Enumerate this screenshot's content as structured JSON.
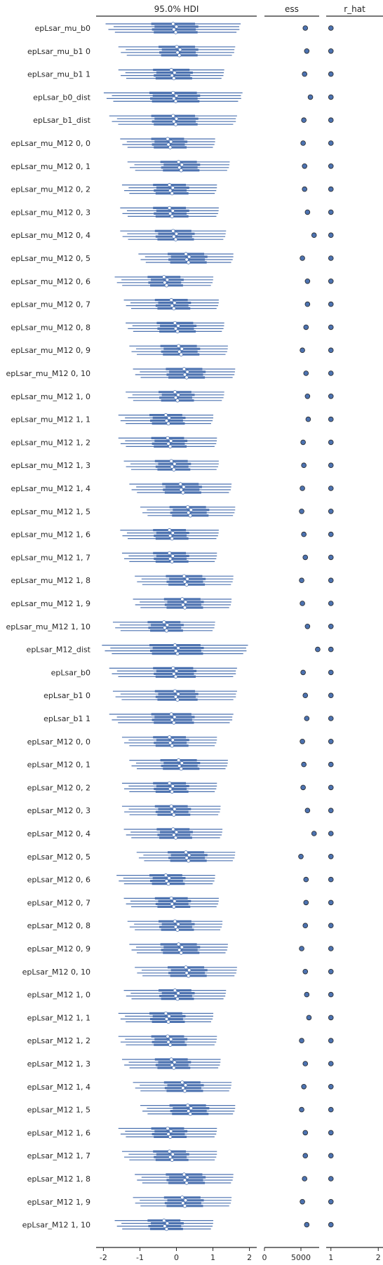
{
  "chart_data": {
    "type": "forest",
    "panels": [
      {
        "title": "95.0% HDI",
        "xlim": [
          -2.2,
          2.2
        ],
        "ticks": [
          -2,
          -1,
          0,
          1,
          2
        ]
      },
      {
        "title": "ess",
        "xlim": [
          0,
          7500
        ],
        "ticks": [
          0,
          5000
        ]
      },
      {
        "title": "r_hat",
        "xlim": [
          0.9,
          2.1
        ],
        "ticks": [
          1,
          2
        ]
      }
    ],
    "colors": {
      "interval": "#4c72b0",
      "marker_edge": "#262626",
      "marker_fill_hdi": "#ffffff",
      "axis": "#262626"
    },
    "rows": [
      {
        "label": "epLsar_mu_b0",
        "center": -0.05,
        "hw": 1.85,
        "iqr": 0.6,
        "ess": 5600,
        "rhat": 1.0
      },
      {
        "label": "epLsar_mu_b1 0",
        "center": 0.05,
        "hw": 1.6,
        "iqr": 0.5,
        "ess": 5800,
        "rhat": 1.0
      },
      {
        "label": "epLsar_mu_b1 1",
        "center": -0.1,
        "hw": 1.45,
        "iqr": 0.5,
        "ess": 5500,
        "rhat": 1.0
      },
      {
        "label": "epLsar_b0_dist",
        "center": -0.05,
        "hw": 1.9,
        "iqr": 0.65,
        "ess": 6300,
        "rhat": 1.0
      },
      {
        "label": "epLsar_b1_dist",
        "center": -0.05,
        "hw": 1.75,
        "iqr": 0.6,
        "ess": 5400,
        "rhat": 1.0
      },
      {
        "label": "epLsar_mu_M12 0, 0",
        "center": -0.2,
        "hw": 1.3,
        "iqr": 0.45,
        "ess": 5300,
        "rhat": 1.0
      },
      {
        "label": "epLsar_mu_M12 0, 1",
        "center": 0.1,
        "hw": 1.4,
        "iqr": 0.5,
        "ess": 5500,
        "rhat": 1.0
      },
      {
        "label": "epLsar_mu_M12 0, 2",
        "center": -0.15,
        "hw": 1.3,
        "iqr": 0.45,
        "ess": 5500,
        "rhat": 1.0
      },
      {
        "label": "epLsar_mu_M12 0, 3",
        "center": -0.15,
        "hw": 1.35,
        "iqr": 0.45,
        "ess": 5900,
        "rhat": 1.0
      },
      {
        "label": "epLsar_mu_M12 0, 4",
        "center": -0.05,
        "hw": 1.45,
        "iqr": 0.5,
        "ess": 6800,
        "rhat": 1.0
      },
      {
        "label": "epLsar_mu_M12 0, 5",
        "center": 0.3,
        "hw": 1.3,
        "iqr": 0.5,
        "ess": 5200,
        "rhat": 1.0
      },
      {
        "label": "epLsar_mu_M12 0, 6",
        "center": -0.3,
        "hw": 1.35,
        "iqr": 0.45,
        "ess": 5900,
        "rhat": 1.0
      },
      {
        "label": "epLsar_mu_M12 0, 7",
        "center": -0.1,
        "hw": 1.3,
        "iqr": 0.45,
        "ess": 5900,
        "rhat": 1.0
      },
      {
        "label": "epLsar_mu_M12 0, 8",
        "center": 0.0,
        "hw": 1.35,
        "iqr": 0.5,
        "ess": 5700,
        "rhat": 1.0
      },
      {
        "label": "epLsar_mu_M12 0, 9",
        "center": 0.1,
        "hw": 1.35,
        "iqr": 0.5,
        "ess": 5200,
        "rhat": 1.0
      },
      {
        "label": "epLsar_mu_M12 0, 10",
        "center": 0.25,
        "hw": 1.4,
        "iqr": 0.5,
        "ess": 5700,
        "rhat": 1.0
      },
      {
        "label": "epLsar_mu_M12 1, 0",
        "center": 0.0,
        "hw": 1.35,
        "iqr": 0.45,
        "ess": 5900,
        "rhat": 1.0
      },
      {
        "label": "epLsar_mu_M12 1, 1",
        "center": -0.25,
        "hw": 1.3,
        "iqr": 0.45,
        "ess": 6000,
        "rhat": 1.0
      },
      {
        "label": "epLsar_mu_M12 1, 2",
        "center": -0.2,
        "hw": 1.35,
        "iqr": 0.45,
        "ess": 5300,
        "rhat": 1.0
      },
      {
        "label": "epLsar_mu_M12 1, 3",
        "center": -0.1,
        "hw": 1.3,
        "iqr": 0.45,
        "ess": 5400,
        "rhat": 1.0
      },
      {
        "label": "epLsar_mu_M12 1, 4",
        "center": 0.15,
        "hw": 1.4,
        "iqr": 0.5,
        "ess": 5200,
        "rhat": 1.0
      },
      {
        "label": "epLsar_mu_M12 1, 5",
        "center": 0.35,
        "hw": 1.3,
        "iqr": 0.5,
        "ess": 5100,
        "rhat": 1.0
      },
      {
        "label": "epLsar_mu_M12 1, 6",
        "center": -0.15,
        "hw": 1.35,
        "iqr": 0.45,
        "ess": 5400,
        "rhat": 1.0
      },
      {
        "label": "epLsar_mu_M12 1, 7",
        "center": -0.15,
        "hw": 1.3,
        "iqr": 0.45,
        "ess": 5600,
        "rhat": 1.0
      },
      {
        "label": "epLsar_mu_M12 1, 8",
        "center": 0.25,
        "hw": 1.35,
        "iqr": 0.5,
        "ess": 5100,
        "rhat": 1.0
      },
      {
        "label": "epLsar_mu_M12 1, 9",
        "center": 0.2,
        "hw": 1.35,
        "iqr": 0.5,
        "ess": 5200,
        "rhat": 1.0
      },
      {
        "label": "epLsar_mu_M12 1, 10",
        "center": -0.3,
        "hw": 1.4,
        "iqr": 0.45,
        "ess": 5900,
        "rhat": 1.0
      },
      {
        "label": "epLsar_M12_dist",
        "center": 0.0,
        "hw": 2.0,
        "iqr": 0.7,
        "ess": 7300,
        "rhat": 1.0
      },
      {
        "label": "epLsar_b0",
        "center": -0.05,
        "hw": 1.75,
        "iqr": 0.55,
        "ess": 5300,
        "rhat": 1.0
      },
      {
        "label": "epLsar_b1 0",
        "center": 0.0,
        "hw": 1.7,
        "iqr": 0.55,
        "ess": 5600,
        "rhat": 1.0
      },
      {
        "label": "epLsar_b1 1",
        "center": -0.1,
        "hw": 1.7,
        "iqr": 0.55,
        "ess": 5800,
        "rhat": 1.0
      },
      {
        "label": "epLsar_M12 0, 0",
        "center": -0.15,
        "hw": 1.3,
        "iqr": 0.45,
        "ess": 5200,
        "rhat": 1.0
      },
      {
        "label": "epLsar_M12 0, 1",
        "center": 0.1,
        "hw": 1.35,
        "iqr": 0.5,
        "ess": 5400,
        "rhat": 1.0
      },
      {
        "label": "epLsar_M12 0, 2",
        "center": -0.15,
        "hw": 1.3,
        "iqr": 0.45,
        "ess": 5300,
        "rhat": 1.0
      },
      {
        "label": "epLsar_M12 0, 3",
        "center": -0.1,
        "hw": 1.35,
        "iqr": 0.45,
        "ess": 5900,
        "rhat": 1.0
      },
      {
        "label": "epLsar_M12 0, 4",
        "center": -0.05,
        "hw": 1.35,
        "iqr": 0.45,
        "ess": 6800,
        "rhat": 1.0
      },
      {
        "label": "epLsar_M12 0, 5",
        "center": 0.3,
        "hw": 1.35,
        "iqr": 0.5,
        "ess": 5000,
        "rhat": 1.0
      },
      {
        "label": "epLsar_M12 0, 6",
        "center": -0.25,
        "hw": 1.35,
        "iqr": 0.45,
        "ess": 5700,
        "rhat": 1.0
      },
      {
        "label": "epLsar_M12 0, 7",
        "center": -0.1,
        "hw": 1.3,
        "iqr": 0.45,
        "ess": 5700,
        "rhat": 1.0
      },
      {
        "label": "epLsar_M12 0, 8",
        "center": 0.0,
        "hw": 1.3,
        "iqr": 0.45,
        "ess": 5600,
        "rhat": 1.0
      },
      {
        "label": "epLsar_M12 0, 9",
        "center": 0.1,
        "hw": 1.35,
        "iqr": 0.5,
        "ess": 5100,
        "rhat": 1.0
      },
      {
        "label": "epLsar_M12 0, 10",
        "center": 0.3,
        "hw": 1.4,
        "iqr": 0.5,
        "ess": 5600,
        "rhat": 1.0
      },
      {
        "label": "epLsar_M12 1, 0",
        "center": 0.0,
        "hw": 1.4,
        "iqr": 0.45,
        "ess": 5800,
        "rhat": 1.0
      },
      {
        "label": "epLsar_M12 1, 1",
        "center": -0.25,
        "hw": 1.3,
        "iqr": 0.45,
        "ess": 6100,
        "rhat": 1.0
      },
      {
        "label": "epLsar_M12 1, 2",
        "center": -0.2,
        "hw": 1.35,
        "iqr": 0.45,
        "ess": 5100,
        "rhat": 1.0
      },
      {
        "label": "epLsar_M12 1, 3",
        "center": -0.1,
        "hw": 1.35,
        "iqr": 0.45,
        "ess": 5600,
        "rhat": 1.0
      },
      {
        "label": "epLsar_M12 1, 4",
        "center": 0.2,
        "hw": 1.35,
        "iqr": 0.5,
        "ess": 5400,
        "rhat": 1.0
      },
      {
        "label": "epLsar_M12 1, 5",
        "center": 0.35,
        "hw": 1.3,
        "iqr": 0.5,
        "ess": 5100,
        "rhat": 1.0
      },
      {
        "label": "epLsar_M12 1, 6",
        "center": -0.2,
        "hw": 1.35,
        "iqr": 0.45,
        "ess": 5600,
        "rhat": 1.0
      },
      {
        "label": "epLsar_M12 1, 7",
        "center": -0.15,
        "hw": 1.3,
        "iqr": 0.45,
        "ess": 5600,
        "rhat": 1.0
      },
      {
        "label": "epLsar_M12 1, 8",
        "center": 0.25,
        "hw": 1.35,
        "iqr": 0.5,
        "ess": 5500,
        "rhat": 1.0
      },
      {
        "label": "epLsar_M12 1, 9",
        "center": 0.2,
        "hw": 1.35,
        "iqr": 0.5,
        "ess": 5200,
        "rhat": 1.0
      },
      {
        "label": "epLsar_M12 1, 10",
        "center": -0.3,
        "hw": 1.35,
        "iqr": 0.45,
        "ess": 5800,
        "rhat": 1.0
      }
    ]
  }
}
